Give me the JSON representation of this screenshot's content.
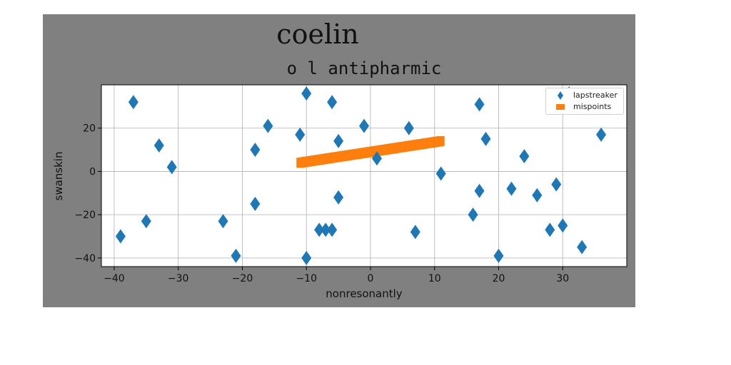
{
  "chart_data": {
    "type": "scatter",
    "title": "coelin",
    "subtitle": "o l antipharmic",
    "xlabel": "nonresonantly",
    "ylabel": "swanskin",
    "xlim": [
      -42,
      40
    ],
    "ylim": [
      -44,
      40
    ],
    "xticks": [
      -40,
      -30,
      -20,
      -10,
      0,
      10,
      20,
      30
    ],
    "yticks": [
      -40,
      -20,
      0,
      20
    ],
    "grid": true,
    "legend_position": "top-right",
    "series": [
      {
        "name": "lapstreaker",
        "marker": "thin-diamond",
        "color": "#1f77b4",
        "points": [
          [
            -39,
            -30
          ],
          [
            -37,
            32
          ],
          [
            -35,
            -23
          ],
          [
            -33,
            12
          ],
          [
            -31,
            2
          ],
          [
            -23,
            -23
          ],
          [
            -21,
            -39
          ],
          [
            -18,
            -15
          ],
          [
            -18,
            10
          ],
          [
            -16,
            21
          ],
          [
            -11,
            17
          ],
          [
            -10,
            36
          ],
          [
            -10,
            -40
          ],
          [
            -8,
            -27
          ],
          [
            -7,
            -27
          ],
          [
            -6,
            -27
          ],
          [
            -6,
            32
          ],
          [
            -5,
            14
          ],
          [
            -5,
            -12
          ],
          [
            -1,
            21
          ],
          [
            1,
            6
          ],
          [
            6,
            20
          ],
          [
            7,
            -28
          ],
          [
            11,
            -1
          ],
          [
            16,
            -20
          ],
          [
            17,
            31
          ],
          [
            17,
            -9
          ],
          [
            18,
            15
          ],
          [
            20,
            -39
          ],
          [
            22,
            -8
          ],
          [
            24,
            7
          ],
          [
            26,
            -11
          ],
          [
            28,
            -27
          ],
          [
            29,
            -6
          ],
          [
            30,
            -25
          ],
          [
            31,
            36
          ],
          [
            33,
            -35
          ],
          [
            36,
            17
          ]
        ]
      },
      {
        "name": "mispoints",
        "marker": "square",
        "color": "#ff7f0e",
        "line": {
          "x_start": -11,
          "x_end": 11,
          "y_start": 4,
          "y_end": 14
        }
      }
    ]
  }
}
